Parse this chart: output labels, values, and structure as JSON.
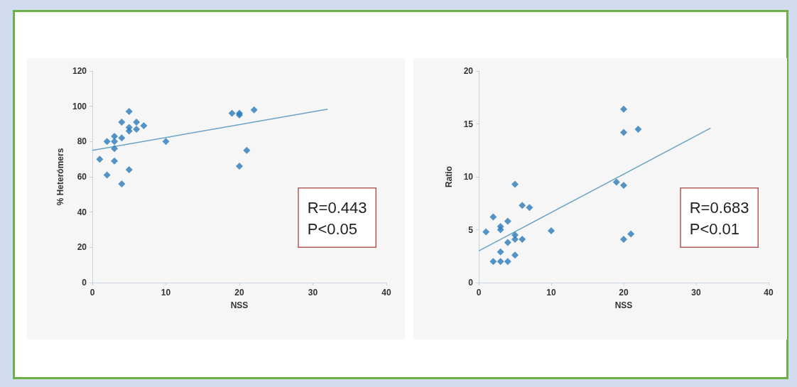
{
  "chart_data": [
    {
      "type": "scatter",
      "xlabel": "NSS",
      "ylabel": "% Heterómers",
      "xlim": [
        0,
        40
      ],
      "xticks": [
        0,
        10,
        20,
        30,
        40
      ],
      "ylim": [
        0,
        120
      ],
      "yticks": [
        0,
        20,
        40,
        60,
        80,
        100,
        120
      ],
      "grid": false,
      "marker": "diamond",
      "annotations": [
        "R=0.443",
        "P<0.05"
      ],
      "series": [
        {
          "color": "#2b7bb9",
          "x": [
            1,
            2,
            2,
            3,
            3,
            3,
            3,
            4,
            4,
            4,
            5,
            5,
            5,
            5,
            6,
            6,
            7,
            10,
            19,
            20,
            20,
            20,
            21,
            22
          ],
          "values": [
            70,
            80,
            61,
            83,
            80,
            76,
            69,
            91,
            82,
            56,
            97,
            88,
            86,
            64,
            91,
            87,
            89,
            80,
            96,
            96,
            95,
            66,
            75,
            98
          ]
        },
        {
          "type": "line",
          "marker": "none",
          "color": "#6aa3c8",
          "x": [
            0,
            32
          ],
          "values": [
            75,
            98.4
          ]
        }
      ]
    },
    {
      "type": "scatter",
      "xlabel": "NSS",
      "ylabel": "Ratio",
      "xlim": [
        0,
        40
      ],
      "xticks": [
        0,
        10,
        20,
        30,
        40
      ],
      "ylim": [
        0,
        20
      ],
      "yticks": [
        0,
        5,
        10,
        15,
        20
      ],
      "grid": false,
      "marker": "diamond",
      "annotations": [
        "R=0.683",
        "P<0.01"
      ],
      "series": [
        {
          "color": "#2b7bb9",
          "x": [
            1,
            2,
            2,
            3,
            3,
            3,
            3,
            4,
            4,
            4,
            5,
            5,
            5,
            5,
            6,
            6,
            7,
            10,
            19,
            20,
            20,
            20,
            20,
            21,
            22
          ],
          "values": [
            4.8,
            6.2,
            2,
            5.3,
            5,
            2.9,
            2,
            5.8,
            3.8,
            2,
            9.3,
            4.5,
            4.1,
            2.6,
            7.3,
            4.1,
            7.1,
            4.9,
            9.5,
            16.4,
            14.2,
            9.2,
            4.1,
            4.6,
            14.5
          ]
        },
        {
          "type": "line",
          "marker": "none",
          "color": "#6aa3c8",
          "x": [
            0,
            32
          ],
          "values": [
            3,
            14.6
          ]
        }
      ]
    }
  ]
}
